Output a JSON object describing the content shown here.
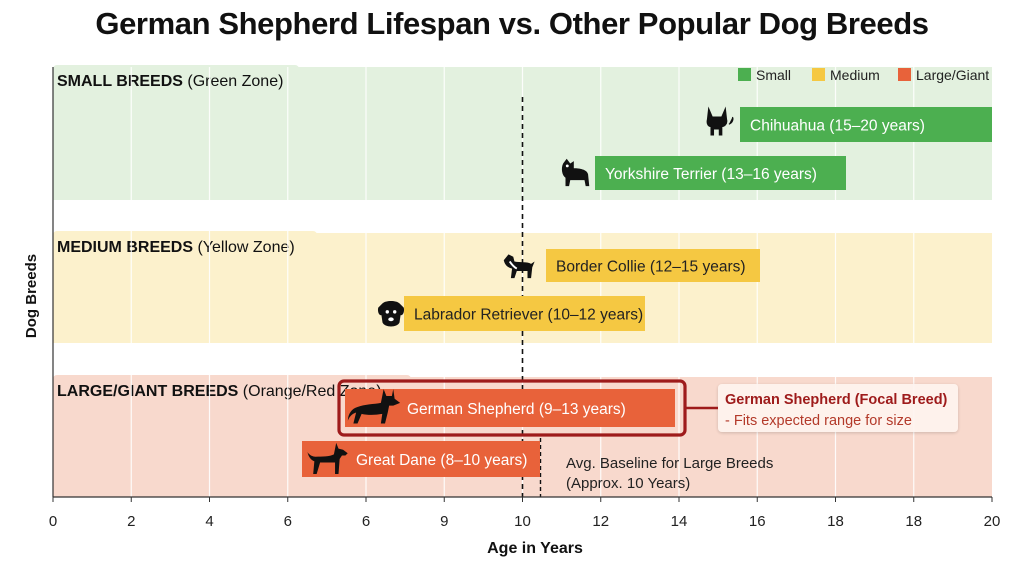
{
  "chart_data": {
    "type": "bar",
    "title": "German Shepherd Lifespan vs. Other Popular Dog Breeds",
    "xlabel": "Age in Years",
    "ylabel": "Dog Breeds",
    "x_ticks": [
      "0",
      "2",
      "4",
      "6",
      "6",
      "9",
      "10",
      "12",
      "14",
      "16",
      "18",
      "18",
      "20"
    ],
    "xlim": [
      0,
      20
    ],
    "grid": true,
    "legend_position": "top-right",
    "legend": [
      {
        "label": "Small",
        "color": "#4caf50"
      },
      {
        "label": "Medium",
        "color": "#f5c842"
      },
      {
        "label": "Large/Giant",
        "color": "#e8623a"
      }
    ],
    "zones": [
      {
        "bold": "SMALL BREEDS",
        "rest": " (Green Zone)",
        "color": "#e3f1df"
      },
      {
        "bold": "MEDIUM BREEDS",
        "rest": " (Yellow Zone)",
        "color": "#fcf1cc"
      },
      {
        "bold": "LARGE/GIANT BREEDS",
        "rest": " (Orange/Red Zone)",
        "color": "#f8d9cd"
      }
    ],
    "bars": [
      {
        "label": "Chihuahua (15–20 years)",
        "start": 15,
        "end": 20,
        "zone": 0,
        "icon": "chihuahua-icon",
        "color": "#4caf50"
      },
      {
        "label": "Yorkshire Terrier (13–16 years)",
        "start": 13,
        "end": 16,
        "zone": 0,
        "icon": "yorkshire-terrier-icon",
        "color": "#4caf50"
      },
      {
        "label": "Border Collie (12–15 years)",
        "start": 12,
        "end": 15,
        "zone": 1,
        "icon": "border-collie-icon",
        "color": "#f5c842"
      },
      {
        "label": "Labrador Retriever (10–12 years)",
        "start": 10,
        "end": 12,
        "zone": 1,
        "icon": "labrador-icon",
        "color": "#f5c842"
      },
      {
        "label": "German Shepherd (9–13 years)",
        "start": 9,
        "end": 13,
        "zone": 2,
        "icon": "german-shepherd-icon",
        "color": "#e8623a",
        "highlight": true
      },
      {
        "label": "Great Dane (8–10 years)",
        "start": 8,
        "end": 10,
        "zone": 2,
        "icon": "great-dane-icon",
        "color": "#e8623a"
      }
    ],
    "reference_line": {
      "x": 10,
      "label_lines": [
        "Avg. Baseline for Large Breeds",
        "(Approx. 10 Years)"
      ]
    },
    "callout": {
      "title": "German Shepherd (Focal Breed)",
      "text": "- Fits expected range for size"
    }
  }
}
